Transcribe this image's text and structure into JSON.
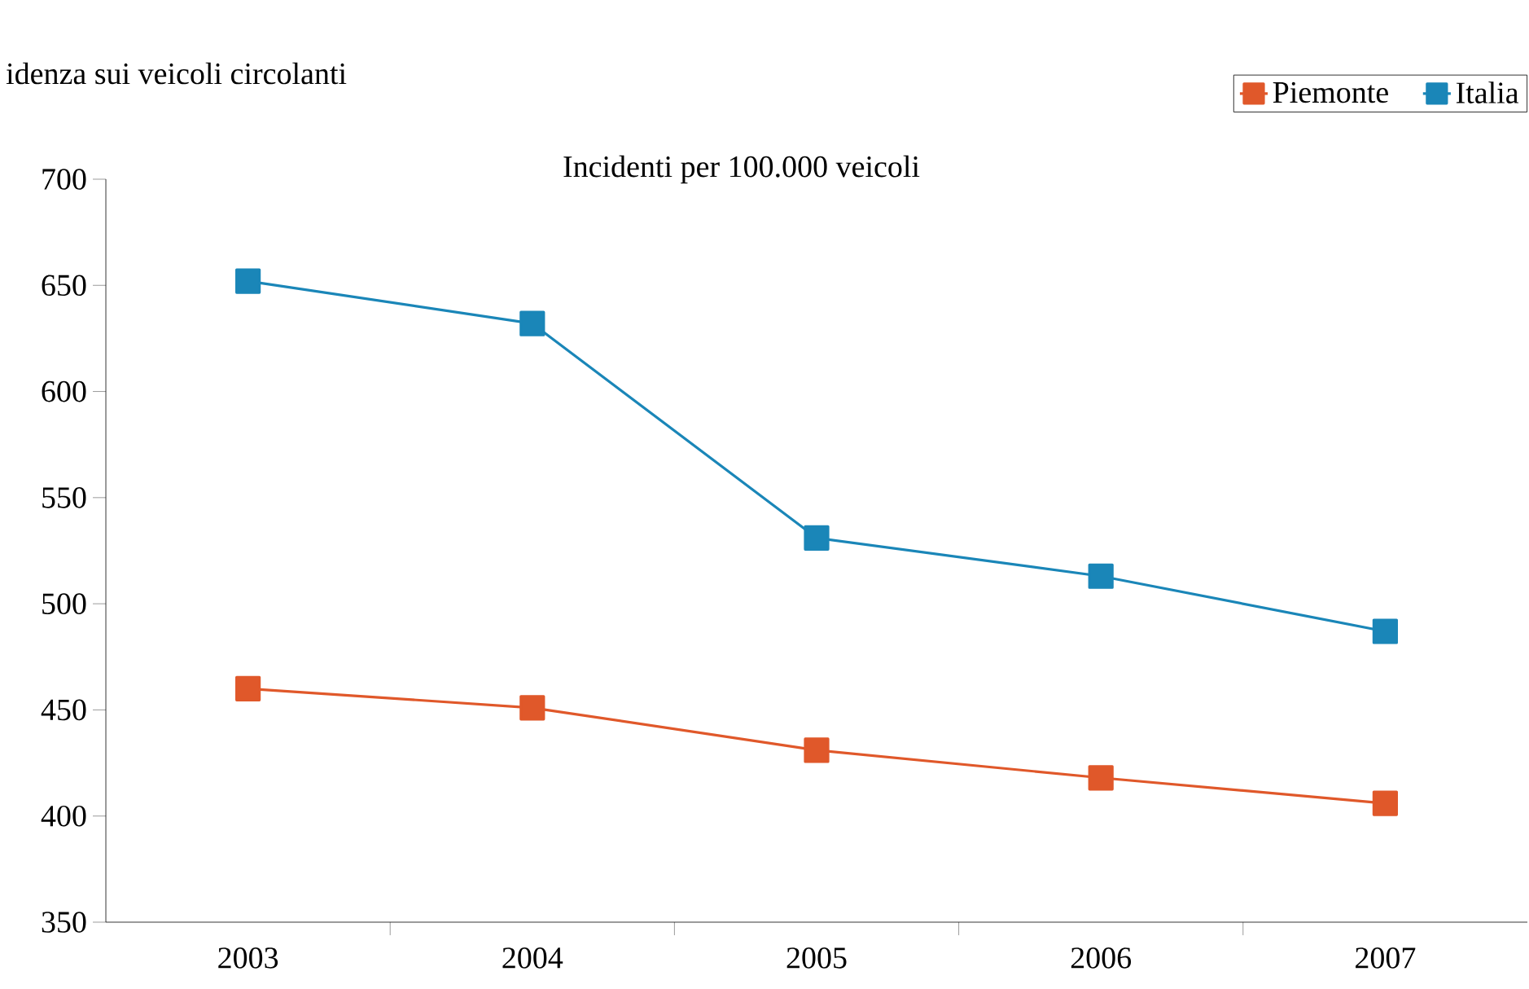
{
  "chart_data": {
    "type": "line",
    "title": "Incidenti per 100.000 veicoli",
    "ylabel": "idenza sui veicoli circolanti",
    "categories": [
      "2003",
      "2004",
      "2005",
      "2006",
      "2007"
    ],
    "series": [
      {
        "name": "Piemonte",
        "color": "#e0582a",
        "values": [
          460,
          451,
          431,
          418,
          406
        ]
      },
      {
        "name": "Italia",
        "color": "#1a86b8",
        "values": [
          652,
          632,
          531,
          513,
          487
        ]
      }
    ],
    "ylim": [
      350,
      700
    ],
    "yticks": [
      350,
      400,
      450,
      500,
      550,
      600,
      650,
      700
    ],
    "legend": "top right",
    "marker": "square",
    "line_style": "solid",
    "grid": false
  }
}
